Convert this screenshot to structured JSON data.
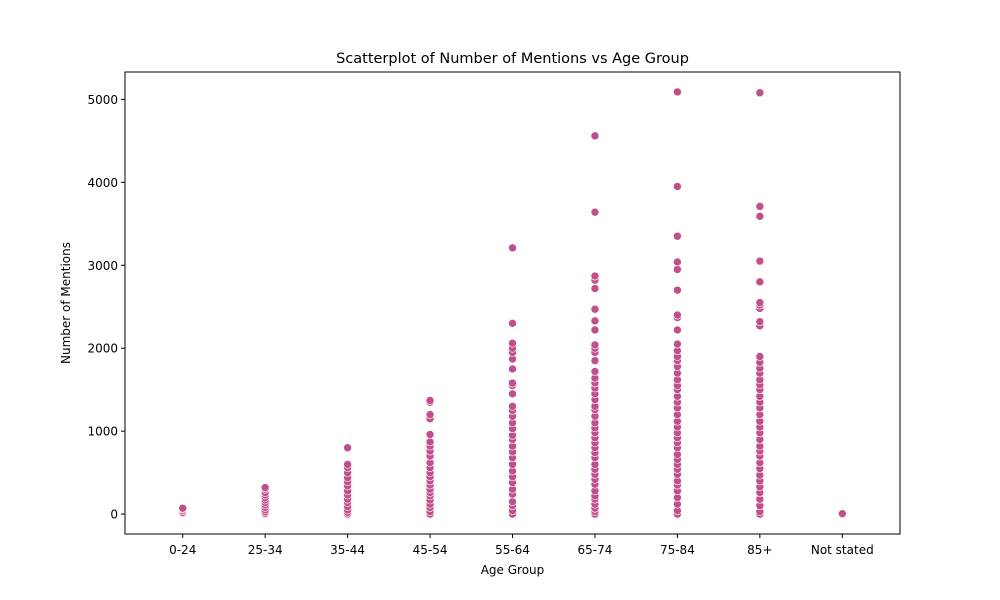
{
  "chart_data": {
    "type": "scatter",
    "title": "Scatterplot of Number of Mentions vs Age Group",
    "xlabel": "Age Group",
    "ylabel": "Number of Mentions",
    "categories": [
      "0-24",
      "25-34",
      "35-44",
      "45-54",
      "55-64",
      "65-74",
      "75-84",
      "85+",
      "Not stated"
    ],
    "ylim": [
      -240,
      5330
    ],
    "yticks": [
      0,
      1000,
      2000,
      3000,
      4000,
      5000
    ],
    "grid": false,
    "legend": "none",
    "marker_color": "#c44e8a",
    "series": [
      {
        "points": [
          [
            "0-24",
            0
          ],
          [
            "0-24",
            5
          ],
          [
            "0-24",
            10
          ],
          [
            "0-24",
            20
          ],
          [
            "0-24",
            40
          ],
          [
            "0-24",
            60
          ],
          [
            "0-24",
            70
          ],
          [
            "25-34",
            0
          ],
          [
            "25-34",
            10
          ],
          [
            "25-34",
            25
          ],
          [
            "25-34",
            50
          ],
          [
            "25-34",
            80
          ],
          [
            "25-34",
            110
          ],
          [
            "25-34",
            140
          ],
          [
            "25-34",
            170
          ],
          [
            "25-34",
            200
          ],
          [
            "25-34",
            230
          ],
          [
            "25-34",
            260
          ],
          [
            "25-34",
            300
          ],
          [
            "25-34",
            320
          ],
          [
            "35-44",
            0
          ],
          [
            "35-44",
            20
          ],
          [
            "35-44",
            50
          ],
          [
            "35-44",
            90
          ],
          [
            "35-44",
            140
          ],
          [
            "35-44",
            180
          ],
          [
            "35-44",
            230
          ],
          [
            "35-44",
            280
          ],
          [
            "35-44",
            340
          ],
          [
            "35-44",
            390
          ],
          [
            "35-44",
            440
          ],
          [
            "35-44",
            500
          ],
          [
            "35-44",
            560
          ],
          [
            "35-44",
            600
          ],
          [
            "35-44",
            800
          ],
          [
            "45-54",
            0
          ],
          [
            "45-54",
            30
          ],
          [
            "45-54",
            80
          ],
          [
            "45-54",
            120
          ],
          [
            "45-54",
            170
          ],
          [
            "45-54",
            220
          ],
          [
            "45-54",
            260
          ],
          [
            "45-54",
            300
          ],
          [
            "45-54",
            350
          ],
          [
            "45-54",
            400
          ],
          [
            "45-54",
            450
          ],
          [
            "45-54",
            500
          ],
          [
            "45-54",
            560
          ],
          [
            "45-54",
            620
          ],
          [
            "45-54",
            700
          ],
          [
            "45-54",
            760
          ],
          [
            "45-54",
            820
          ],
          [
            "45-54",
            870
          ],
          [
            "45-54",
            960
          ],
          [
            "45-54",
            1150
          ],
          [
            "45-54",
            1200
          ],
          [
            "45-54",
            1350
          ],
          [
            "45-54",
            1370
          ],
          [
            "55-64",
            0
          ],
          [
            "55-64",
            40
          ],
          [
            "55-64",
            100
          ],
          [
            "55-64",
            150
          ],
          [
            "55-64",
            240
          ],
          [
            "55-64",
            300
          ],
          [
            "55-64",
            380
          ],
          [
            "55-64",
            450
          ],
          [
            "55-64",
            520
          ],
          [
            "55-64",
            600
          ],
          [
            "55-64",
            680
          ],
          [
            "55-64",
            750
          ],
          [
            "55-64",
            820
          ],
          [
            "55-64",
            900
          ],
          [
            "55-64",
            950
          ],
          [
            "55-64",
            1030
          ],
          [
            "55-64",
            1100
          ],
          [
            "55-64",
            1180
          ],
          [
            "55-64",
            1250
          ],
          [
            "55-64",
            1300
          ],
          [
            "55-64",
            1450
          ],
          [
            "55-64",
            1550
          ],
          [
            "55-64",
            1580
          ],
          [
            "55-64",
            1750
          ],
          [
            "55-64",
            1870
          ],
          [
            "55-64",
            1950
          ],
          [
            "55-64",
            2000
          ],
          [
            "55-64",
            2060
          ],
          [
            "55-64",
            2300
          ],
          [
            "55-64",
            3210
          ],
          [
            "65-74",
            0
          ],
          [
            "65-74",
            30
          ],
          [
            "65-74",
            70
          ],
          [
            "65-74",
            120
          ],
          [
            "65-74",
            180
          ],
          [
            "65-74",
            220
          ],
          [
            "65-74",
            280
          ],
          [
            "65-74",
            360
          ],
          [
            "65-74",
            420
          ],
          [
            "65-74",
            480
          ],
          [
            "65-74",
            540
          ],
          [
            "65-74",
            600
          ],
          [
            "65-74",
            680
          ],
          [
            "65-74",
            740
          ],
          [
            "65-74",
            800
          ],
          [
            "65-74",
            860
          ],
          [
            "65-74",
            920
          ],
          [
            "65-74",
            980
          ],
          [
            "65-74",
            1040
          ],
          [
            "65-74",
            1100
          ],
          [
            "65-74",
            1180
          ],
          [
            "65-74",
            1260
          ],
          [
            "65-74",
            1300
          ],
          [
            "65-74",
            1380
          ],
          [
            "65-74",
            1450
          ],
          [
            "65-74",
            1520
          ],
          [
            "65-74",
            1580
          ],
          [
            "65-74",
            1640
          ],
          [
            "65-74",
            1720
          ],
          [
            "65-74",
            1850
          ],
          [
            "65-74",
            1950
          ],
          [
            "65-74",
            2000
          ],
          [
            "65-74",
            2040
          ],
          [
            "65-74",
            2220
          ],
          [
            "65-74",
            2330
          ],
          [
            "65-74",
            2470
          ],
          [
            "65-74",
            2720
          ],
          [
            "65-74",
            2820
          ],
          [
            "65-74",
            2870
          ],
          [
            "65-74",
            3640
          ],
          [
            "65-74",
            4560
          ],
          [
            "75-84",
            0
          ],
          [
            "75-84",
            40
          ],
          [
            "75-84",
            120
          ],
          [
            "75-84",
            200
          ],
          [
            "75-84",
            280
          ],
          [
            "75-84",
            350
          ],
          [
            "75-84",
            400
          ],
          [
            "75-84",
            480
          ],
          [
            "75-84",
            540
          ],
          [
            "75-84",
            600
          ],
          [
            "75-84",
            660
          ],
          [
            "75-84",
            720
          ],
          [
            "75-84",
            800
          ],
          [
            "75-84",
            860
          ],
          [
            "75-84",
            920
          ],
          [
            "75-84",
            980
          ],
          [
            "75-84",
            1050
          ],
          [
            "75-84",
            1120
          ],
          [
            "75-84",
            1200
          ],
          [
            "75-84",
            1280
          ],
          [
            "75-84",
            1350
          ],
          [
            "75-84",
            1420
          ],
          [
            "75-84",
            1500
          ],
          [
            "75-84",
            1550
          ],
          [
            "75-84",
            1620
          ],
          [
            "75-84",
            1700
          ],
          [
            "75-84",
            1780
          ],
          [
            "75-84",
            1850
          ],
          [
            "75-84",
            1900
          ],
          [
            "75-84",
            1970
          ],
          [
            "75-84",
            2050
          ],
          [
            "75-84",
            2220
          ],
          [
            "75-84",
            2370
          ],
          [
            "75-84",
            2400
          ],
          [
            "75-84",
            2700
          ],
          [
            "75-84",
            2950
          ],
          [
            "75-84",
            3040
          ],
          [
            "75-84",
            3350
          ],
          [
            "75-84",
            3950
          ],
          [
            "75-84",
            5090
          ],
          [
            "85+",
            0
          ],
          [
            "85+",
            30
          ],
          [
            "85+",
            100
          ],
          [
            "85+",
            180
          ],
          [
            "85+",
            260
          ],
          [
            "85+",
            330
          ],
          [
            "85+",
            400
          ],
          [
            "85+",
            470
          ],
          [
            "85+",
            550
          ],
          [
            "85+",
            620
          ],
          [
            "85+",
            700
          ],
          [
            "85+",
            760
          ],
          [
            "85+",
            820
          ],
          [
            "85+",
            900
          ],
          [
            "85+",
            980
          ],
          [
            "85+",
            1050
          ],
          [
            "85+",
            1120
          ],
          [
            "85+",
            1200
          ],
          [
            "85+",
            1280
          ],
          [
            "85+",
            1350
          ],
          [
            "85+",
            1420
          ],
          [
            "85+",
            1500
          ],
          [
            "85+",
            1560
          ],
          [
            "85+",
            1620
          ],
          [
            "85+",
            1700
          ],
          [
            "85+",
            1760
          ],
          [
            "85+",
            1830
          ],
          [
            "85+",
            1900
          ],
          [
            "85+",
            2270
          ],
          [
            "85+",
            2320
          ],
          [
            "85+",
            2480
          ],
          [
            "85+",
            2520
          ],
          [
            "85+",
            2550
          ],
          [
            "85+",
            2800
          ],
          [
            "85+",
            3050
          ],
          [
            "85+",
            3590
          ],
          [
            "85+",
            3710
          ],
          [
            "85+",
            5080
          ],
          [
            "Not stated",
            0
          ],
          [
            "Not stated",
            5
          ]
        ]
      }
    ]
  }
}
